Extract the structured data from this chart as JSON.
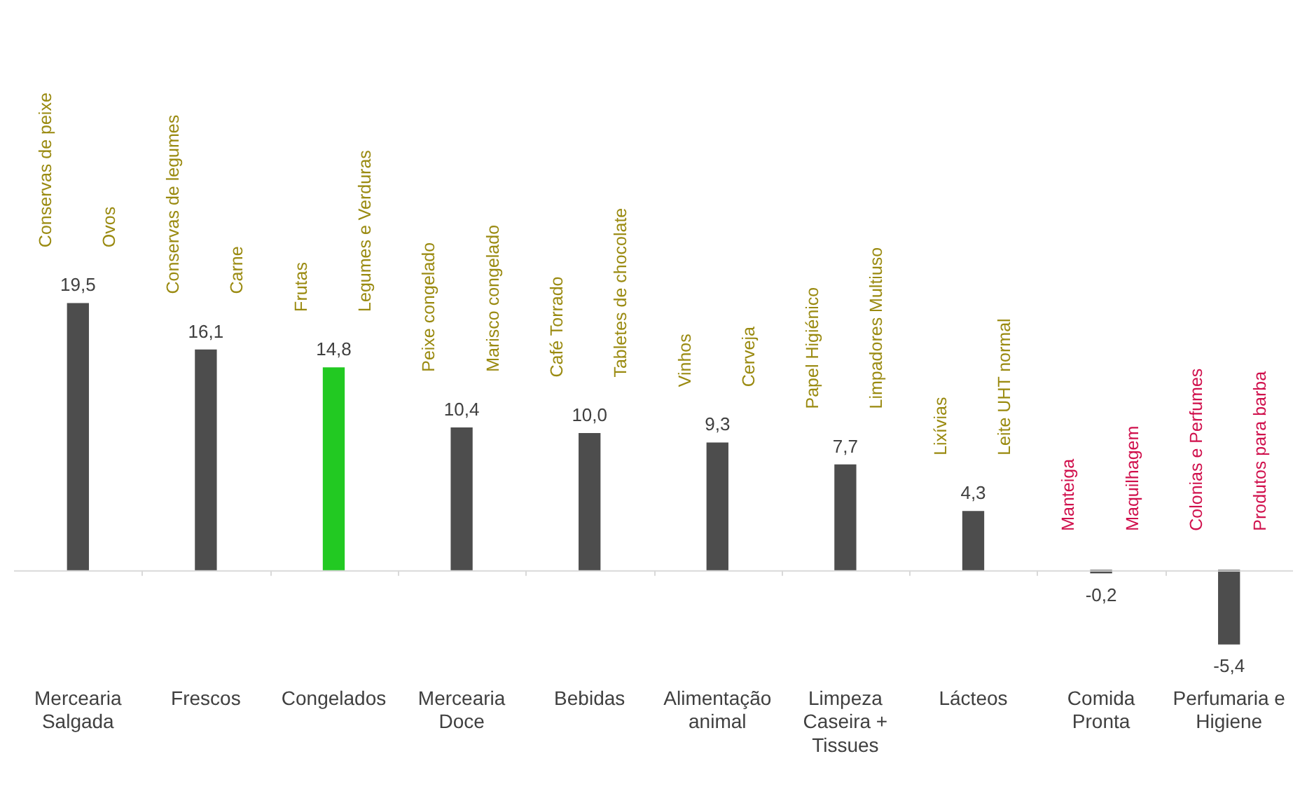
{
  "chart_data": {
    "type": "bar",
    "categories": [
      "Mercearia Salgada",
      "Frescos",
      "Congelados",
      "Mercearia Doce",
      "Bebidas",
      "Alimentação animal",
      "Limpeza Caseira + Tissues",
      "Lácteos",
      "Comida Pronta",
      "Perfumaria e Higiene"
    ],
    "values": [
      19.5,
      16.1,
      14.8,
      10.4,
      10.0,
      9.3,
      7.7,
      4.3,
      -0.2,
      -5.4
    ],
    "colors": [
      "#4d4d4d",
      "#4d4d4d",
      "#22c922",
      "#4d4d4d",
      "#4d4d4d",
      "#4d4d4d",
      "#4d4d4d",
      "#4d4d4d",
      "#4d4d4d",
      "#4d4d4d"
    ],
    "value_labels": [
      "19,5",
      "16,1",
      "14,8",
      "10,4",
      "10,0",
      "9,3",
      "7,7",
      "4,3",
      "-0,2",
      "-5,4"
    ],
    "tick_labels": "x",
    "grid": false,
    "legend": false,
    "annotations": [
      "Conservas de peixe",
      "Ovos",
      "Conservas de legumes",
      "Carne",
      "Frutas",
      "Legumes e Verduras",
      "Peixe congelado",
      "Marisco congelado",
      "Café Torrado",
      "Tabletes de chocolate",
      "Vinhos",
      "Cerveja",
      "Papel Higiénico",
      "Limpadores Multiuso",
      "Lixívias",
      "Leite UHT normal",
      "Manteiga",
      "Maquilhagem",
      "Colonias e Perfumes",
      "Produtos para barba"
    ]
  }
}
